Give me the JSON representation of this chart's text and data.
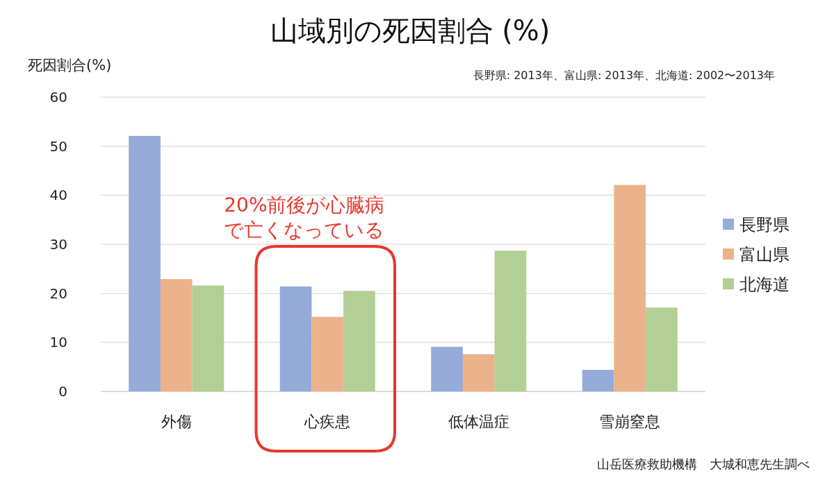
{
  "chart_data": {
    "type": "bar",
    "title": "山域別の死因割合 (%)",
    "subtitle": "長野県:  2013年、富山県: 2013年、北海道: 2002〜2013年",
    "ylabel": "死因割合(%)",
    "categories": [
      "外傷",
      "心疾患",
      "低体温症",
      "雪崩窒息"
    ],
    "series": [
      {
        "name": "長野県",
        "color": "#95abd9",
        "values": [
          52.1,
          21.4,
          9.1,
          4.4
        ]
      },
      {
        "name": "富山県",
        "color": "#ebb28a",
        "values": [
          22.9,
          15.2,
          7.6,
          42.1
        ]
      },
      {
        "name": "北海道",
        "color": "#b2cf95",
        "values": [
          21.6,
          20.5,
          28.7,
          17.1
        ]
      }
    ],
    "ylim": [
      0,
      60
    ],
    "yticks": [
      0,
      10,
      20,
      30,
      40,
      50,
      60
    ],
    "grid": "y",
    "legend": "right",
    "annotations": [
      "20%前後が心臓病で亡くなっている",
      "山岳医療救助機構　大城和恵先生調べ"
    ]
  }
}
